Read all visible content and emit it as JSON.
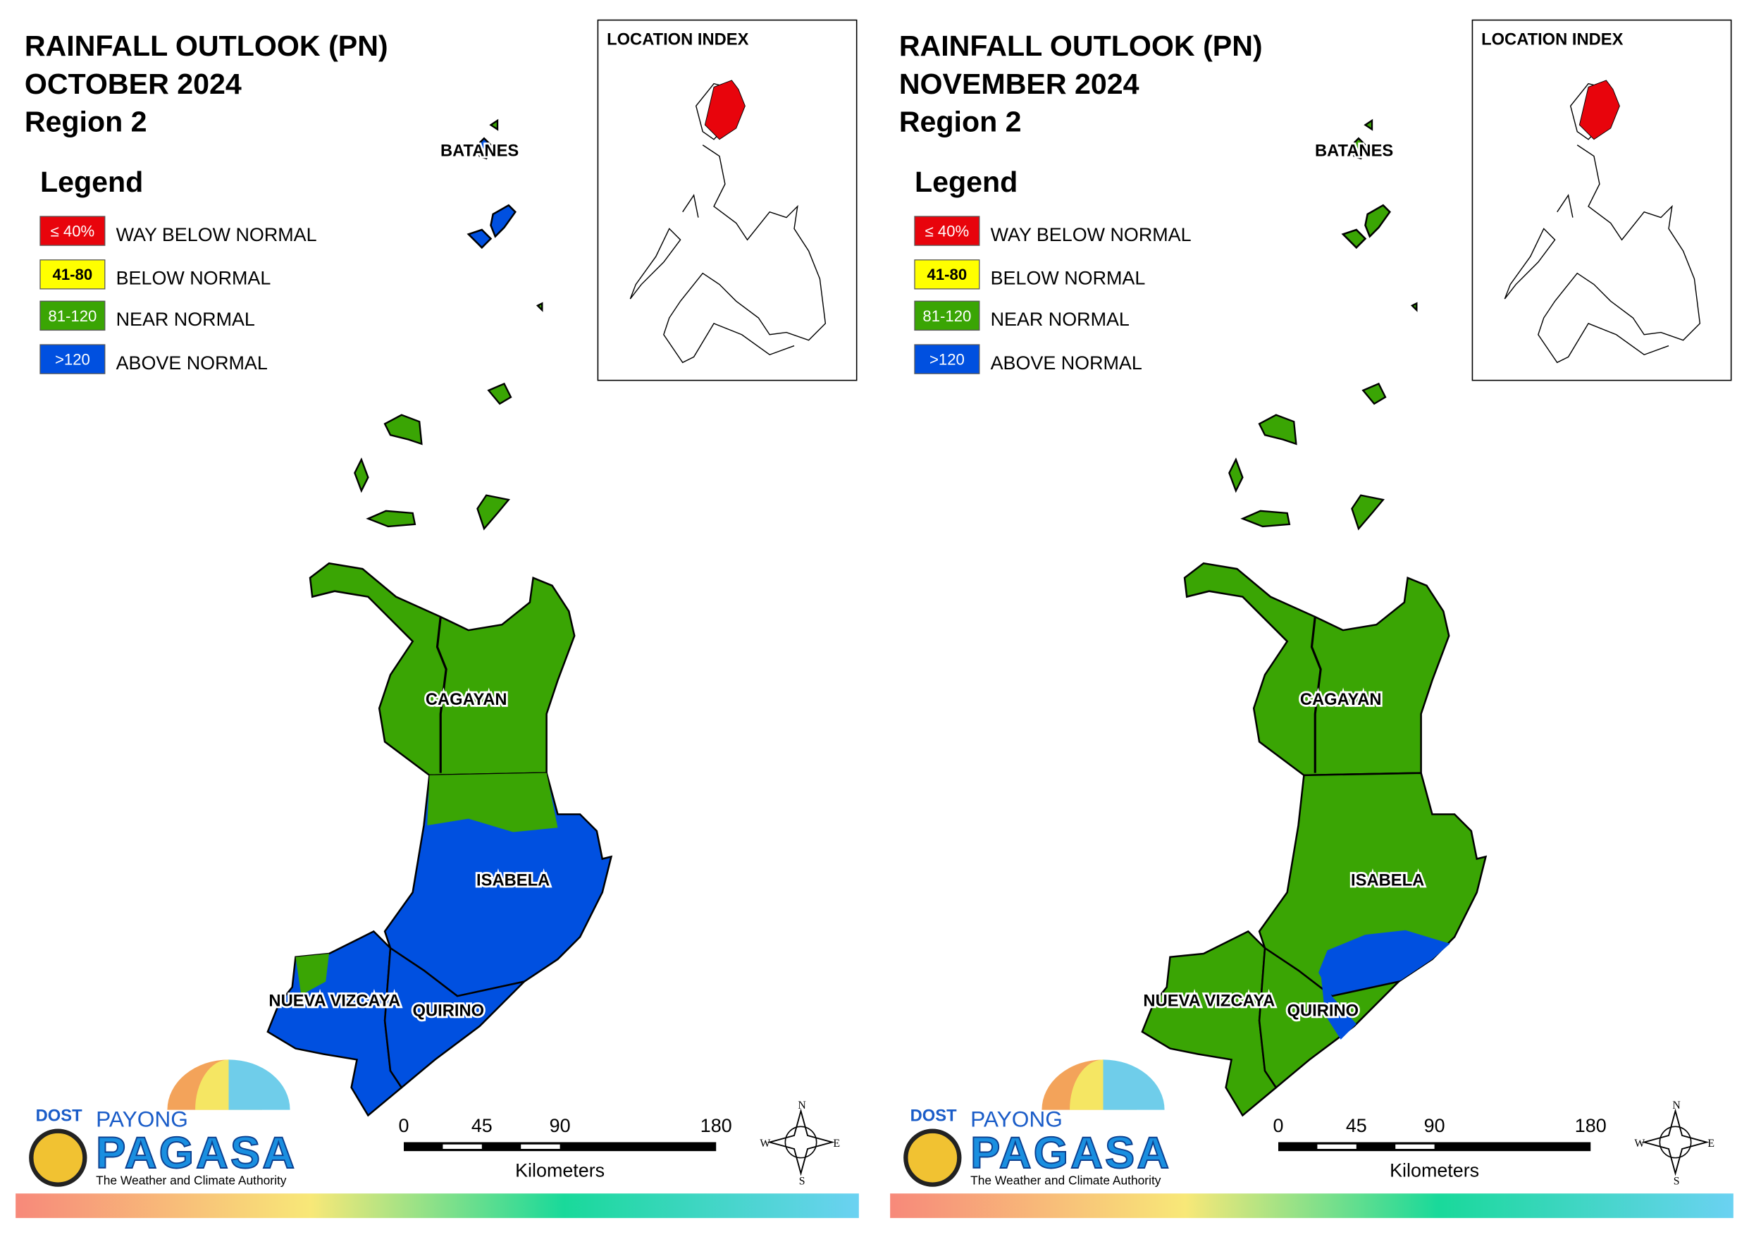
{
  "panels": [
    {
      "title": [
        "RAINFALL OUTLOOK (PN)",
        "OCTOBER 2024",
        "Region 2"
      ],
      "legend": {
        "title": "Legend",
        "items": [
          {
            "range": "≤ 40%",
            "label": "WAY BELOW NORMAL",
            "color": "#e8040c"
          },
          {
            "range": "41-80",
            "label": "BELOW NORMAL",
            "color": "#ffff00"
          },
          {
            "range": "81-120",
            "label": "NEAR NORMAL",
            "color": "#3aa504"
          },
          {
            "range": ">120",
            "label": "ABOVE NORMAL",
            "color": "#0050e0"
          }
        ]
      },
      "location_index": "LOCATION INDEX",
      "provinces": [
        {
          "label": "BATANES",
          "colors": [
            "#0050e0"
          ]
        },
        {
          "label": "CAGAYAN",
          "colors": [
            "#3aa504"
          ]
        },
        {
          "label": "ISABELA",
          "colors": [
            "#0050e0",
            "#3aa504"
          ]
        },
        {
          "label": "NUEVA VIZCAYA",
          "colors": [
            "#0050e0",
            "#3aa504"
          ]
        },
        {
          "label": "QUIRINO",
          "colors": [
            "#0050e0"
          ]
        }
      ],
      "scale": {
        "ticks": [
          0,
          45,
          90,
          180
        ],
        "unit": "Kilometers"
      },
      "compass": [
        "N",
        "E",
        "S",
        "W"
      ],
      "logo": {
        "dost": "DOST",
        "payong": "PAYONG",
        "pagasa": "PAGASA",
        "tagline": "The Weather and Climate Authority"
      }
    },
    {
      "title": [
        "RAINFALL OUTLOOK (PN)",
        "NOVEMBER 2024",
        "Region 2"
      ],
      "legend": {
        "title": "Legend",
        "items": [
          {
            "range": "≤ 40%",
            "label": "WAY BELOW NORMAL",
            "color": "#e8040c"
          },
          {
            "range": "41-80",
            "label": "BELOW NORMAL",
            "color": "#ffff00"
          },
          {
            "range": "81-120",
            "label": "NEAR NORMAL",
            "color": "#3aa504"
          },
          {
            "range": ">120",
            "label": "ABOVE NORMAL",
            "color": "#0050e0"
          }
        ]
      },
      "location_index": "LOCATION INDEX",
      "provinces": [
        {
          "label": "BATANES",
          "colors": [
            "#3aa504"
          ]
        },
        {
          "label": "CAGAYAN",
          "colors": [
            "#3aa504"
          ]
        },
        {
          "label": "ISABELA",
          "colors": [
            "#3aa504",
            "#0050e0"
          ]
        },
        {
          "label": "NUEVA VIZCAYA",
          "colors": [
            "#3aa504"
          ]
        },
        {
          "label": "QUIRINO",
          "colors": [
            "#3aa504",
            "#0050e0"
          ]
        }
      ],
      "scale": {
        "ticks": [
          0,
          45,
          90,
          180
        ],
        "unit": "Kilometers"
      },
      "compass": [
        "N",
        "E",
        "S",
        "W"
      ],
      "logo": {
        "dost": "DOST",
        "payong": "PAYONG",
        "pagasa": "PAGASA",
        "tagline": "The Weather and Climate Authority"
      }
    }
  ]
}
